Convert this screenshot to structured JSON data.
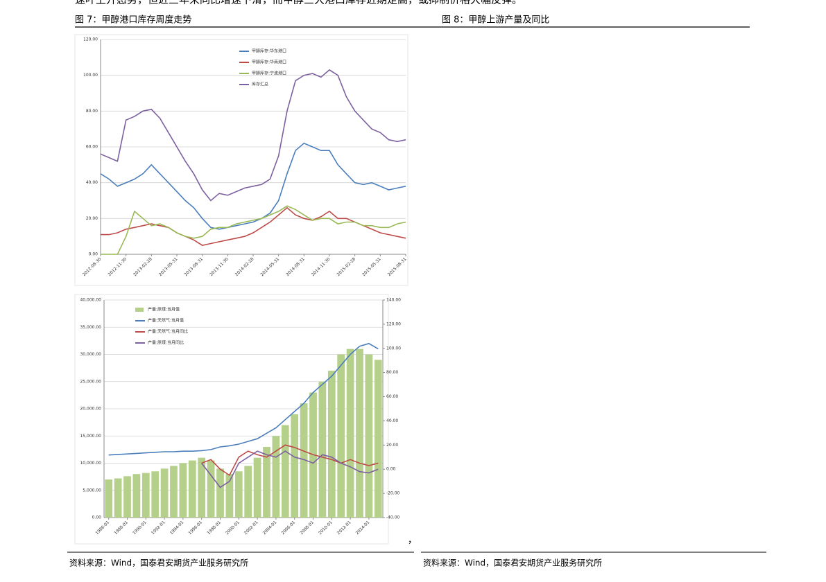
{
  "header_text": "速叶上升态势，但近三年来同比增速下滑，而甲醇三大港口库存近期走高，或抑制价格大幅反弹。",
  "sources": [
    "资料来源：Wind，国泰君安期货产业服务研究所",
    "资料来源：Wind，国泰君安期货产业服务研究所"
  ],
  "separator": "，",
  "chart_data": [
    {
      "type": "line",
      "title": "图 7：甲醇港口库存周度走势",
      "grid": true,
      "categories": [
        "2012-08-30",
        null,
        null,
        "2012-11-30",
        null,
        null,
        "2013-02-28",
        null,
        null,
        "2013-05-31",
        null,
        null,
        "2013-08-31",
        null,
        null,
        "2013-11-30",
        null,
        null,
        "2014-02-28",
        null,
        null,
        "2014-05-31",
        null,
        null,
        "2014-08-31",
        null,
        null,
        "2014-11-30",
        null,
        null,
        "2015-02-28",
        null,
        null,
        "2015-05-31",
        null,
        null,
        "2015-08-31"
      ],
      "ylim": [
        0,
        120
      ],
      "yticks": [
        {
          "value": 0,
          "label": "0.00"
        },
        {
          "value": 20,
          "label": "20.00"
        },
        {
          "value": 40,
          "label": "40.00"
        },
        {
          "value": 60,
          "label": "60.00"
        },
        {
          "value": 80,
          "label": "80.00"
        },
        {
          "value": 100,
          "label": "100.00"
        },
        {
          "value": 120,
          "label": "120.00"
        }
      ],
      "series": [
        {
          "name": "甲醇库存:华东港口",
          "color": "#4a7ebb",
          "values": [
            45,
            42,
            38,
            40,
            42,
            45,
            50,
            45,
            40,
            35,
            30,
            26,
            20,
            15,
            14,
            15,
            16,
            17,
            18,
            20,
            23,
            30,
            45,
            58,
            62,
            60,
            58,
            58,
            50,
            45,
            40,
            39,
            40,
            38,
            36,
            37,
            38
          ]
        },
        {
          "name": "甲醇库存:华南港口",
          "color": "#be4b48",
          "values": [
            11,
            11,
            12,
            14,
            15,
            16,
            17,
            16,
            15,
            12,
            10,
            8,
            5,
            6,
            7,
            8,
            9,
            10,
            12,
            15,
            18,
            22,
            26,
            22,
            20,
            19,
            21,
            24,
            20,
            20,
            18,
            16,
            14,
            12,
            11,
            10,
            9
          ]
        },
        {
          "name": "甲醇库存:宁波港口",
          "color": "#98b954",
          "values": [
            0,
            0,
            0,
            10,
            24,
            20,
            16,
            17,
            15,
            12,
            10,
            9,
            10,
            14,
            15,
            15,
            17,
            18,
            19,
            20,
            22,
            24,
            27,
            25,
            22,
            19,
            20,
            20,
            17,
            18,
            18,
            16,
            16,
            15,
            15,
            17,
            18
          ]
        },
        {
          "name": "库存汇总",
          "color": "#7d60a0",
          "values": [
            56,
            54,
            52,
            75,
            77,
            80,
            81,
            76,
            68,
            60,
            52,
            45,
            36,
            30,
            34,
            33,
            35,
            37,
            38,
            39,
            42,
            55,
            80,
            97,
            100,
            101,
            99,
            103,
            100,
            88,
            80,
            75,
            70,
            68,
            64,
            63,
            64
          ]
        }
      ]
    },
    {
      "type": "combo",
      "title": "图 8：甲醇上游产量及同比",
      "grid": true,
      "categories": [
        "1986-01",
        null,
        "1988-01",
        null,
        "1990-01",
        null,
        "1992-01",
        null,
        "1994-01",
        null,
        "1996-01",
        null,
        "1998-01",
        null,
        "2000-01",
        null,
        "2002-01",
        null,
        "2004-01",
        null,
        "2006-01",
        null,
        "2008-01",
        null,
        "2010-01",
        null,
        "2012-01",
        null,
        "2014-01",
        null
      ],
      "ylim": [
        0,
        40000
      ],
      "yticks": [
        {
          "value": 0,
          "label": "0.00"
        },
        {
          "value": 5000,
          "label": "5,000.00"
        },
        {
          "value": 10000,
          "label": "10,000.00"
        },
        {
          "value": 15000,
          "label": "15,000.00"
        },
        {
          "value": 20000,
          "label": "20,000.00"
        },
        {
          "value": 25000,
          "label": "25,000.00"
        },
        {
          "value": 30000,
          "label": "30,000.00"
        },
        {
          "value": 35000,
          "label": "35,000.00"
        },
        {
          "value": 40000,
          "label": "40,000.00"
        }
      ],
      "y2lim": [
        -40,
        140
      ],
      "y2ticks": [
        {
          "value": -40,
          "label": "-40.00"
        },
        {
          "value": -20,
          "label": "-20.00"
        },
        {
          "value": 0,
          "label": "0.00"
        },
        {
          "value": 20,
          "label": "20.00"
        },
        {
          "value": 40,
          "label": "40.00"
        },
        {
          "value": 60,
          "label": "60.00"
        },
        {
          "value": 80,
          "label": "80.00"
        },
        {
          "value": 100,
          "label": "100.00"
        },
        {
          "value": 120,
          "label": "120.00"
        },
        {
          "value": 140,
          "label": "140.00"
        }
      ],
      "series": [
        {
          "name": "产量:原煤:当月值",
          "color": "#b5d08a",
          "kind": "bar",
          "values": [
            7000,
            7200,
            7600,
            8000,
            8200,
            8500,
            9000,
            9500,
            10000,
            10500,
            11000,
            10500,
            9000,
            8000,
            8500,
            9500,
            11000,
            13000,
            15000,
            17000,
            19000,
            21000,
            23000,
            25000,
            27000,
            30000,
            31000,
            31000,
            30000,
            29000
          ]
        },
        {
          "name": "产量:天然气:当月值",
          "color": "#4a7ebb",
          "values": [
            11500,
            11600,
            11700,
            11800,
            11900,
            12000,
            12100,
            12100,
            12200,
            12200,
            12300,
            12500,
            13000,
            13200,
            13500,
            14000,
            14500,
            15500,
            16500,
            18000,
            19500,
            21000,
            23000,
            24500,
            26000,
            28000,
            30000,
            31500,
            32000,
            31000
          ]
        },
        {
          "name": "产量:天然气:当月同比",
          "color": "#be4b48",
          "axis": "y2",
          "values": [
            null,
            null,
            null,
            null,
            null,
            null,
            null,
            null,
            null,
            null,
            5,
            8,
            0,
            -5,
            10,
            15,
            12,
            10,
            15,
            20,
            18,
            15,
            12,
            10,
            8,
            5,
            8,
            5,
            3,
            5
          ]
        },
        {
          "name": "产量:原煤:当月同比",
          "color": "#7d60a0",
          "axis": "y2",
          "values": [
            null,
            null,
            null,
            null,
            null,
            null,
            null,
            null,
            null,
            null,
            5,
            -5,
            -15,
            -10,
            5,
            10,
            15,
            12,
            10,
            15,
            10,
            8,
            5,
            12,
            10,
            5,
            2,
            -2,
            -3,
            0
          ]
        }
      ]
    }
  ]
}
